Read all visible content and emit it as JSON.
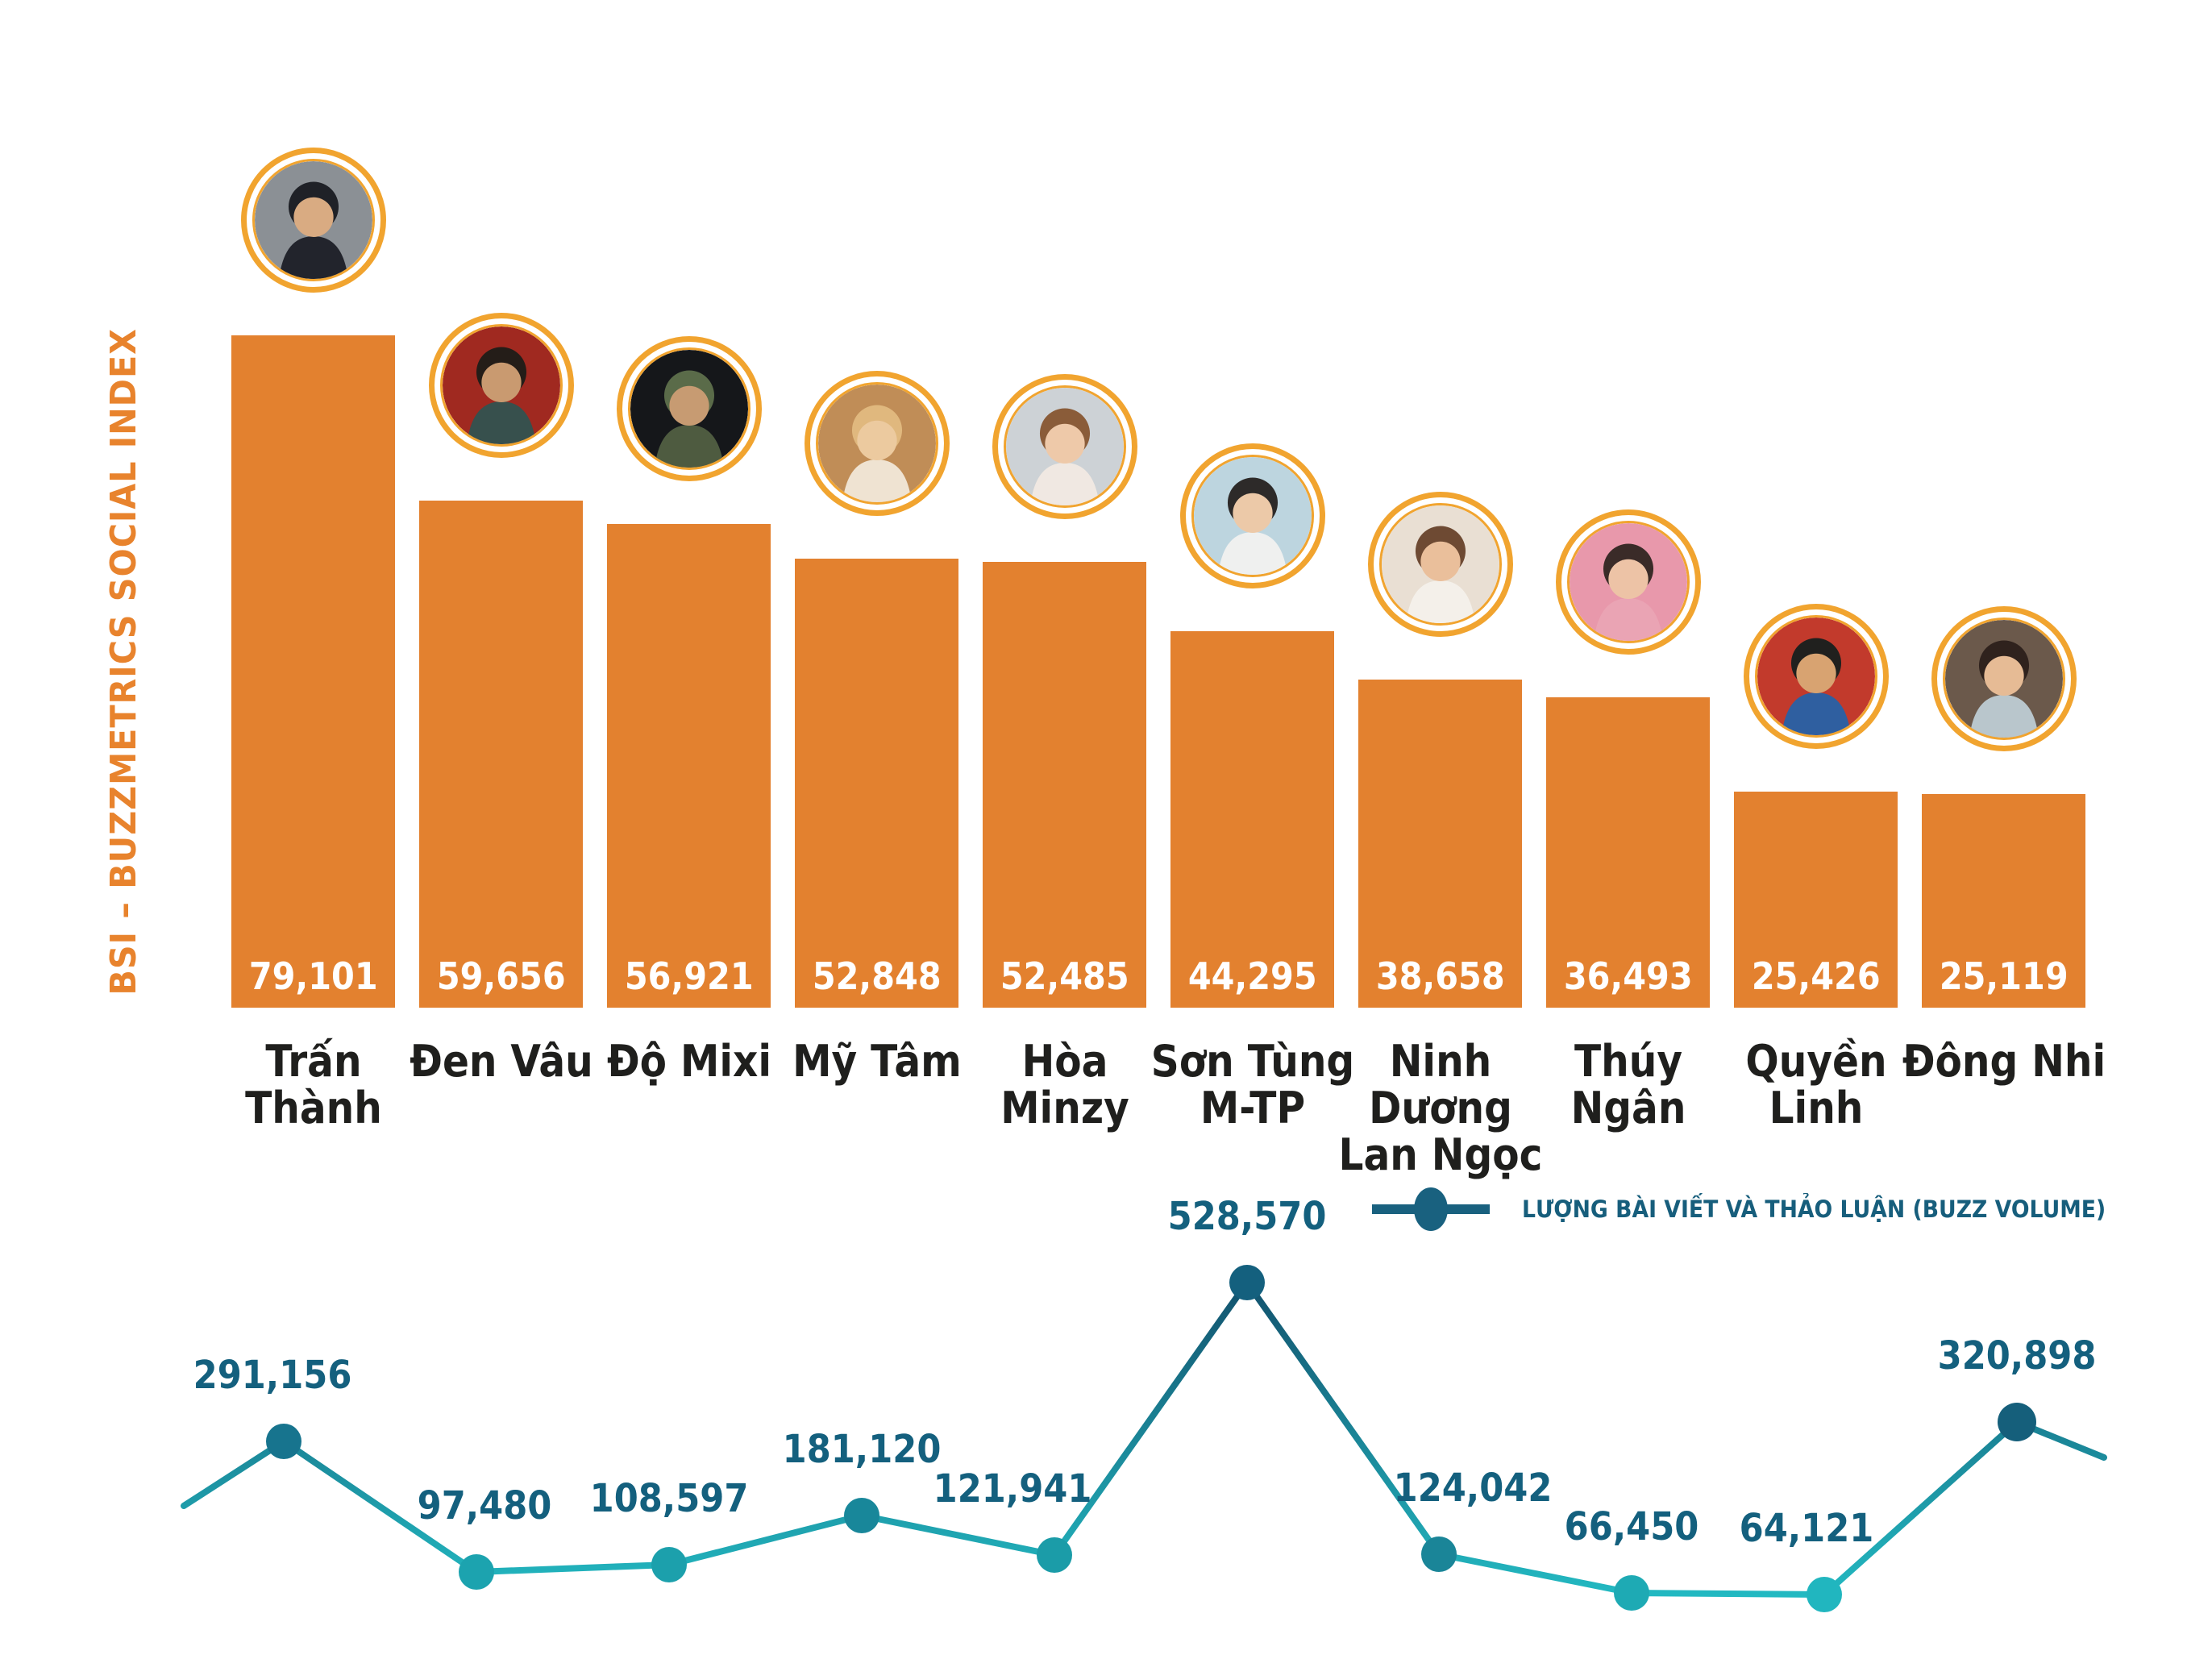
{
  "axis": {
    "label": "BSI – BUZZMETRICS SOCIAL INDEX"
  },
  "legend": {
    "label": "LƯỢNG BÀI VIẾT VÀ THẢO LUẬN (BUZZ VOLUME)"
  },
  "colors": {
    "bar": "#E3812F",
    "avatar_ring": "#F1A42F",
    "axis_label": "#E8832D",
    "value_text": "#FFFFFF",
    "name_text": "#1F1F1D",
    "buzz_label": "#14607E",
    "line_gradient_top": "#124F6B",
    "line_gradient_bottom": "#23BCC4",
    "legend_marker": "#19617F"
  },
  "chart_data": [
    {
      "type": "bar",
      "title": "BSI – BUZZMETRICS SOCIAL INDEX",
      "categories": [
        "Trấn Thành",
        "Đen Vâu",
        "Độ Mixi",
        "Mỹ Tâm",
        "Hòa Minzy",
        "Sơn Tùng M-TP",
        "Ninh Dương Lan Ngọc",
        "Thúy Ngân",
        "Quyền Linh",
        "Đông Nhi"
      ],
      "values": [
        79101,
        59656,
        56921,
        52848,
        52485,
        44295,
        38658,
        36493,
        25426,
        25119
      ],
      "value_labels": [
        "79,101",
        "59,656",
        "56,921",
        "52,848",
        "52,485",
        "44,295",
        "38,658",
        "36,493",
        "25,426",
        "25,119"
      ],
      "xlabel": "",
      "ylabel": "BSI – BUZZMETRICS SOCIAL INDEX",
      "ylim": [
        0,
        80000
      ],
      "grid": false,
      "bar_color": "#E3812F"
    },
    {
      "type": "line",
      "name": "LƯỢNG BÀI VIẾT VÀ THẢO LUẬN (BUZZ VOLUME)",
      "categories": [
        "Trấn Thành",
        "Đen Vâu",
        "Độ Mixi",
        "Mỹ Tâm",
        "Hòa Minzy",
        "Sơn Tùng M-TP",
        "Ninh Dương Lan Ngọc",
        "Thúy Ngân",
        "Quyền Linh",
        "Đông Nhi"
      ],
      "values": [
        291156,
        97480,
        108597,
        181120,
        121941,
        528570,
        124042,
        66450,
        64121,
        320898
      ],
      "value_labels": [
        "291,156",
        "97,480",
        "108,597",
        "181,120",
        "121,941",
        "528,570",
        "124,042",
        "66,450",
        "64,121",
        "320,898"
      ],
      "point_colors": [
        "#17748E",
        "#1CA3AF",
        "#1CA0AC",
        "#18879A",
        "#1B9CA8",
        "#14607E",
        "#1A8598",
        "#1EAAB4",
        "#21B6BF",
        "#155F7B"
      ],
      "legend_position": "top-right",
      "grid": false,
      "ylim": [
        0,
        560000
      ]
    }
  ],
  "people": [
    {
      "name": "Trấn Thành",
      "name_lines": [
        "Trấn Thành"
      ],
      "bsi": 79101,
      "bsi_label": "79,101",
      "buzz": 291156,
      "buzz_label": "291,156",
      "avatar": {
        "bg": "#8B9095",
        "hair": "#1F2127",
        "skin": "#D9AB82",
        "body": "#22242C"
      }
    },
    {
      "name": "Đen Vâu",
      "name_lines": [
        "Đen Vâu"
      ],
      "bsi": 59656,
      "bsi_label": "59,656",
      "buzz": 97480,
      "buzz_label": "97,480",
      "avatar": {
        "bg": "#A02920",
        "hair": "#241D18",
        "skin": "#C99A70",
        "body": "#37504D"
      }
    },
    {
      "name": "Độ Mixi",
      "name_lines": [
        "Độ Mixi"
      ],
      "bsi": 56921,
      "bsi_label": "56,921",
      "buzz": 108597,
      "buzz_label": "108,597",
      "avatar": {
        "bg": "#15171A",
        "hair": "#5A6B49",
        "skin": "#C79B72",
        "body": "#4E5B40"
      }
    },
    {
      "name": "Mỹ Tâm",
      "name_lines": [
        "Mỹ Tâm"
      ],
      "bsi": 52848,
      "bsi_label": "52,848",
      "buzz": 181120,
      "buzz_label": "181,120",
      "avatar": {
        "bg": "#C08D57",
        "hair": "#E0B87E",
        "skin": "#ECCA9F",
        "body": "#EFE3D2"
      }
    },
    {
      "name": "Hòa Minzy",
      "name_lines": [
        "Hòa Minzy"
      ],
      "bsi": 52485,
      "bsi_label": "52,485",
      "buzz": 121941,
      "buzz_label": "121,941",
      "avatar": {
        "bg": "#CDD2D6",
        "hair": "#8A5C39",
        "skin": "#EEC9A9",
        "body": "#F0E8E2"
      }
    },
    {
      "name": "Sơn Tùng M-TP",
      "name_lines": [
        "Sơn Tùng",
        "M-TP"
      ],
      "bsi": 44295,
      "bsi_label": "44,295",
      "buzz": 528570,
      "buzz_label": "528,570",
      "avatar": {
        "bg": "#BDD5DF",
        "hair": "#2D2A29",
        "skin": "#ECC9A8",
        "body": "#EFF0EF"
      }
    },
    {
      "name": "Ninh Dương Lan Ngọc",
      "name_lines": [
        "Ninh Dương",
        "Lan Ngọc"
      ],
      "bsi": 38658,
      "bsi_label": "38,658",
      "buzz": 124042,
      "buzz_label": "124,042",
      "avatar": {
        "bg": "#E9DFD3",
        "hair": "#6E4A33",
        "skin": "#EABF9B",
        "body": "#F4F0EA"
      }
    },
    {
      "name": "Thúy Ngân",
      "name_lines": [
        "Thúy Ngân"
      ],
      "bsi": 36493,
      "bsi_label": "36,493",
      "buzz": 66450,
      "buzz_label": "66,450",
      "avatar": {
        "bg": "#E898AB",
        "hair": "#3A2B28",
        "skin": "#EDC3A6",
        "body": "#EAA4B4"
      }
    },
    {
      "name": "Quyền Linh",
      "name_lines": [
        "Quyền Linh"
      ],
      "bsi": 25426,
      "bsi_label": "25,426",
      "buzz": 64121,
      "buzz_label": "64,121",
      "avatar": {
        "bg": "#C23A2C",
        "hair": "#20201E",
        "skin": "#D8A371",
        "body": "#2F5FA0"
      }
    },
    {
      "name": "Đông Nhi",
      "name_lines": [
        "Đông Nhi"
      ],
      "bsi": 25119,
      "bsi_label": "25,119",
      "buzz": 320898,
      "buzz_label": "320,898",
      "avatar": {
        "bg": "#6B594B",
        "hair": "#2F221D",
        "skin": "#E6BB95",
        "body": "#B9C6CC"
      }
    }
  ]
}
